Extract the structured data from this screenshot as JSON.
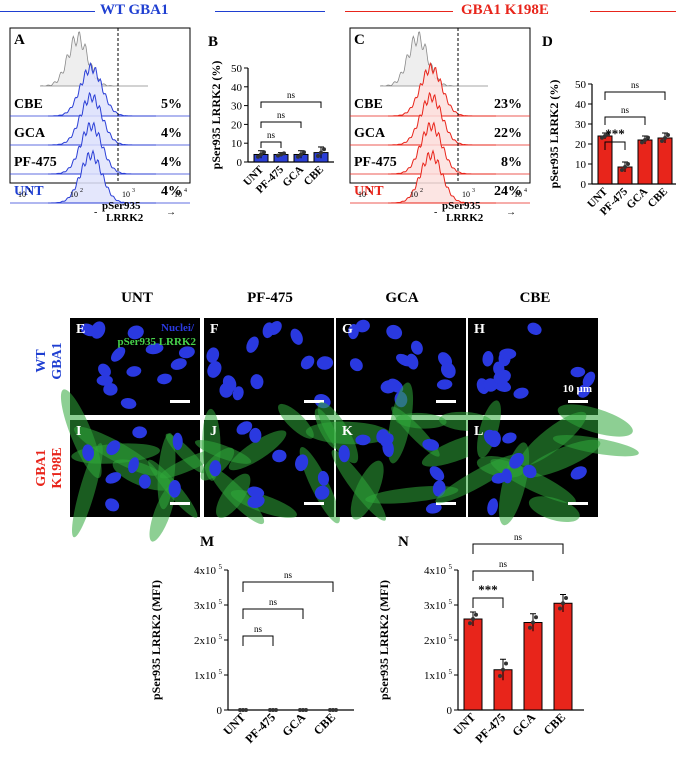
{
  "headers": {
    "wt": "WT GBA1",
    "mut": "GBA1 K198E",
    "wt_color": "#1f3fd1",
    "mut_color": "#e8251b"
  },
  "flow_wt": {
    "letter": "A",
    "rows": [
      {
        "label": "CBE",
        "value": "5%",
        "color": "#000000"
      },
      {
        "label": "GCA",
        "value": "4%",
        "color": "#000000"
      },
      {
        "label": "PF-475",
        "value": "4%",
        "color": "#000000"
      },
      {
        "label": "UNT",
        "value": "4%",
        "color": "#1f3fd1"
      }
    ],
    "xticks": [
      "10",
      "10",
      "10",
      "10"
    ],
    "xtick_exp": [
      "1",
      "2",
      "3",
      "4"
    ],
    "axis_label_1": "pSer935",
    "axis_label_2": "LRRK2",
    "curve_color": "#2b3fd6",
    "fill_color": "#dfe3fb"
  },
  "flow_mut": {
    "letter": "C",
    "rows": [
      {
        "label": "CBE",
        "value": "23%",
        "color": "#000000"
      },
      {
        "label": "GCA",
        "value": "22%",
        "color": "#000000"
      },
      {
        "label": "PF-475",
        "value": "8%",
        "color": "#000000"
      },
      {
        "label": "UNT",
        "value": "24%",
        "color": "#e8251b"
      }
    ],
    "xticks": [
      "10",
      "10",
      "10",
      "10"
    ],
    "xtick_exp": [
      "1",
      "2",
      "3",
      "4"
    ],
    "axis_label_1": "pSer935",
    "axis_label_2": "LRRK2",
    "curve_color": "#e8251b",
    "fill_color": "#fbe0de"
  },
  "microscopy": {
    "columns": [
      "UNT",
      "PF-475",
      "GCA",
      "CBE"
    ],
    "row1_label": [
      "WT",
      "GBA1"
    ],
    "row2_label": [
      "GBA1",
      "K198E"
    ],
    "legend_nuclei": "Nuclei/",
    "legend_target": "pSer935 LRRK2",
    "scale_label": "10 µm",
    "letters_row1": [
      "E",
      "F",
      "G",
      "H"
    ],
    "letters_row2": [
      "I",
      "J",
      "K",
      "L"
    ]
  },
  "chart_data": [
    {
      "panel": "B",
      "type": "bar",
      "categories": [
        "UNT",
        "PF-475",
        "GCA",
        "CBE"
      ],
      "values": [
        4,
        4,
        4,
        5
      ],
      "errors": [
        2,
        1,
        2,
        3
      ],
      "ylabel": "pSer935 LRRK2 (%)",
      "ylim": [
        0,
        50
      ],
      "yticks": [
        "0",
        "10",
        "20",
        "30",
        "40",
        "50"
      ],
      "bar_color": "#2b3fd6",
      "significance": [
        {
          "from": 0,
          "to": 1,
          "label": "ns"
        },
        {
          "from": 0,
          "to": 2,
          "label": "ns"
        },
        {
          "from": 0,
          "to": 3,
          "label": "ns"
        }
      ]
    },
    {
      "panel": "D",
      "type": "bar",
      "categories": [
        "UNT",
        "PF-475",
        "GCA",
        "CBE"
      ],
      "values": [
        24,
        8.5,
        22,
        23
      ],
      "errors": [
        1.5,
        2.5,
        2,
        2.5
      ],
      "ylabel": "pSer935 LRRK2 (%)",
      "ylim": [
        0,
        50
      ],
      "yticks": [
        "0",
        "10",
        "20",
        "30",
        "40",
        "50"
      ],
      "bar_color": "#e8251b",
      "significance": [
        {
          "from": 0,
          "to": 1,
          "label": "***"
        },
        {
          "from": 0,
          "to": 2,
          "label": "ns"
        },
        {
          "from": 0,
          "to": 3,
          "label": "ns"
        }
      ]
    },
    {
      "panel": "M",
      "type": "bar",
      "categories": [
        "UNT",
        "PF-475",
        "GCA",
        "CBE"
      ],
      "values": [
        0,
        0,
        0,
        0
      ],
      "errors": [
        0,
        0,
        0,
        0
      ],
      "ylabel": "pSer935 LRRK2 (MFI)",
      "ylim": [
        0,
        400000
      ],
      "ytick_base": [
        "0",
        "1x10",
        "2x10",
        "3x10",
        "4x10"
      ],
      "ytick_exp": [
        "",
        "5",
        "5",
        "5",
        "5"
      ],
      "bar_color": "#2b3fd6",
      "significance": [
        {
          "from": 0,
          "to": 1,
          "label": "ns"
        },
        {
          "from": 0,
          "to": 2,
          "label": "ns"
        },
        {
          "from": 0,
          "to": 3,
          "label": "ns"
        }
      ]
    },
    {
      "panel": "N",
      "type": "bar",
      "categories": [
        "UNT",
        "PF-475",
        "GCA",
        "CBE"
      ],
      "values": [
        260000,
        115000,
        250000,
        305000
      ],
      "errors": [
        20000,
        30000,
        25000,
        25000
      ],
      "ylabel": "pSer935 LRRK2 (MFI)",
      "ylim": [
        0,
        400000
      ],
      "ytick_base": [
        "0",
        "1x10",
        "2x10",
        "3x10",
        "4x10"
      ],
      "ytick_exp": [
        "",
        "5",
        "5",
        "5",
        "5"
      ],
      "bar_color": "#e8251b",
      "significance": [
        {
          "from": 0,
          "to": 1,
          "label": "***"
        },
        {
          "from": 0,
          "to": 2,
          "label": "ns"
        },
        {
          "from": 0,
          "to": 3,
          "label": "ns"
        }
      ]
    }
  ]
}
